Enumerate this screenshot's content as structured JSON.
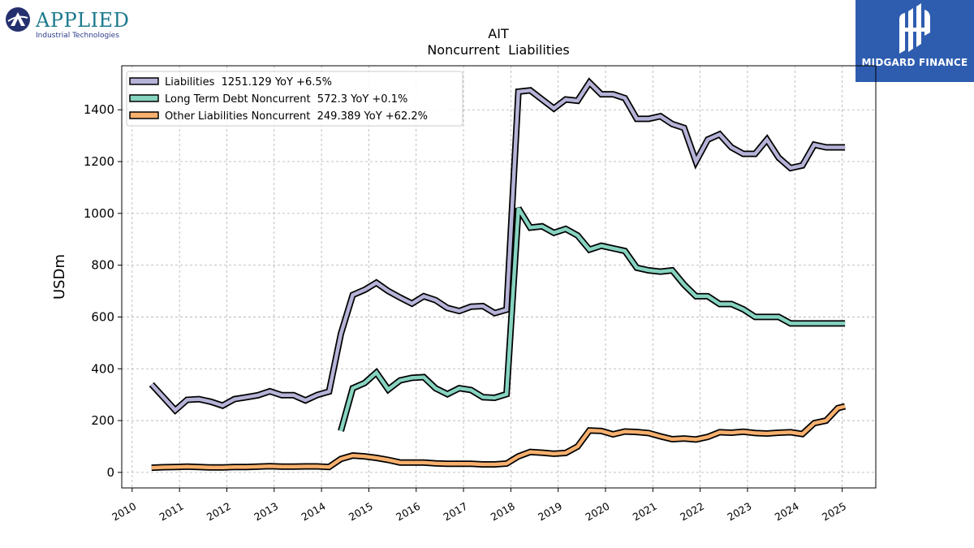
{
  "branding": {
    "company_name": "APPLIED",
    "company_tagline": "Industrial Technologies",
    "publisher": "MIDGARD FINANCE"
  },
  "chart_data": {
    "type": "line",
    "title": "AIT",
    "subtitle": "Noncurrent  Liabilities",
    "ylabel": "USDm",
    "xlabel": "",
    "xlim": [
      2009.78,
      2025.71
    ],
    "ylim": [
      -60,
      1570
    ],
    "yticks": [
      0,
      200,
      400,
      600,
      800,
      1000,
      1200,
      1400
    ],
    "xticks": [
      "2010",
      "2011",
      "2012",
      "2013",
      "2014",
      "2015",
      "2016",
      "2017",
      "2018",
      "2019",
      "2020",
      "2021",
      "2022",
      "2023",
      "2024",
      "2025"
    ],
    "grid": true,
    "legend_position": "top-left",
    "series": [
      {
        "name": "Liabilities",
        "legend_label": "Liabilities  1251.129 YoY +6.5%",
        "color": "#b6b3d8",
        "x": [
          2010.41,
          2010.66,
          2010.91,
          2011.16,
          2011.41,
          2011.66,
          2011.91,
          2012.16,
          2012.41,
          2012.66,
          2012.91,
          2013.16,
          2013.41,
          2013.66,
          2013.91,
          2014.16,
          2014.41,
          2014.66,
          2014.91,
          2015.16,
          2015.41,
          2015.66,
          2015.91,
          2016.16,
          2016.41,
          2016.66,
          2016.91,
          2017.16,
          2017.41,
          2017.66,
          2017.91,
          2018.16,
          2018.41,
          2018.66,
          2018.91,
          2019.16,
          2019.41,
          2019.66,
          2019.91,
          2020.16,
          2020.41,
          2020.66,
          2020.91,
          2021.16,
          2021.41,
          2021.66,
          2021.91,
          2022.16,
          2022.41,
          2022.66,
          2022.91,
          2023.16,
          2023.41,
          2023.66,
          2023.91,
          2024.16,
          2024.41,
          2024.66,
          2024.91,
          2025.06
        ],
        "values": [
          340,
          290,
          240,
          280,
          283,
          273,
          258,
          283,
          290,
          298,
          313,
          298,
          298,
          278,
          299,
          312,
          535,
          685,
          705,
          732,
          700,
          675,
          652,
          680,
          665,
          635,
          623,
          640,
          642,
          615,
          628,
          1470,
          1475,
          1440,
          1405,
          1440,
          1435,
          1505,
          1460,
          1460,
          1445,
          1365,
          1365,
          1375,
          1345,
          1330,
          1200,
          1285,
          1305,
          1255,
          1230,
          1230,
          1285,
          1215,
          1175,
          1185,
          1265,
          1255,
          1255,
          1255
        ]
      },
      {
        "name": "Long Term Debt Noncurrent",
        "legend_label": "Long Term Debt Noncurrent  572.3 YoY +0.1%",
        "color": "#86d3c0",
        "x": [
          2014.41,
          2014.66,
          2014.91,
          2015.16,
          2015.41,
          2015.66,
          2015.91,
          2016.16,
          2016.41,
          2016.66,
          2016.91,
          2017.16,
          2017.41,
          2017.66,
          2017.91,
          2018.16,
          2018.41,
          2018.66,
          2018.91,
          2019.16,
          2019.41,
          2019.66,
          2019.91,
          2020.16,
          2020.41,
          2020.66,
          2020.91,
          2021.16,
          2021.41,
          2021.66,
          2021.91,
          2022.16,
          2022.41,
          2022.66,
          2022.91,
          2023.16,
          2023.41,
          2023.66,
          2023.91,
          2024.16,
          2024.41,
          2024.66,
          2024.91,
          2025.06
        ],
        "values": [
          160,
          325,
          345,
          385,
          320,
          355,
          365,
          368,
          325,
          302,
          325,
          318,
          290,
          288,
          302,
          1020,
          945,
          950,
          925,
          940,
          915,
          860,
          875,
          865,
          855,
          790,
          780,
          775,
          780,
          725,
          680,
          680,
          650,
          650,
          630,
          600,
          600,
          600,
          575,
          575,
          575,
          575,
          575,
          575
        ]
      },
      {
        "name": "Other Liabilities Noncurrent",
        "legend_label": "Other Liabilities Noncurrent  249.389 YoY +62.2%",
        "color": "#f7b06e",
        "x": [
          2010.41,
          2010.66,
          2010.91,
          2011.16,
          2011.41,
          2011.66,
          2011.91,
          2012.16,
          2012.41,
          2012.66,
          2012.91,
          2013.16,
          2013.41,
          2013.66,
          2013.91,
          2014.16,
          2014.41,
          2014.66,
          2014.91,
          2015.16,
          2015.41,
          2015.66,
          2015.91,
          2016.16,
          2016.41,
          2016.66,
          2016.91,
          2017.16,
          2017.41,
          2017.66,
          2017.91,
          2018.16,
          2018.41,
          2018.66,
          2018.91,
          2019.16,
          2019.41,
          2019.66,
          2019.91,
          2020.16,
          2020.41,
          2020.66,
          2020.91,
          2021.16,
          2021.41,
          2021.66,
          2021.91,
          2022.16,
          2022.41,
          2022.66,
          2022.91,
          2023.16,
          2023.41,
          2023.66,
          2023.91,
          2024.16,
          2024.41,
          2024.66,
          2024.91,
          2025.06
        ],
        "values": [
          18,
          20,
          21,
          22,
          21,
          19,
          19,
          21,
          21,
          22,
          24,
          22,
          22,
          23,
          23,
          21,
          52,
          65,
          62,
          56,
          48,
          38,
          38,
          38,
          35,
          33,
          33,
          33,
          31,
          31,
          34,
          62,
          79,
          76,
          72,
          75,
          100,
          162,
          160,
          147,
          158,
          156,
          152,
          139,
          128,
          131,
          127,
          137,
          155,
          153,
          157,
          152,
          150,
          153,
          155,
          148,
          190,
          200,
          248,
          255
        ]
      }
    ]
  }
}
